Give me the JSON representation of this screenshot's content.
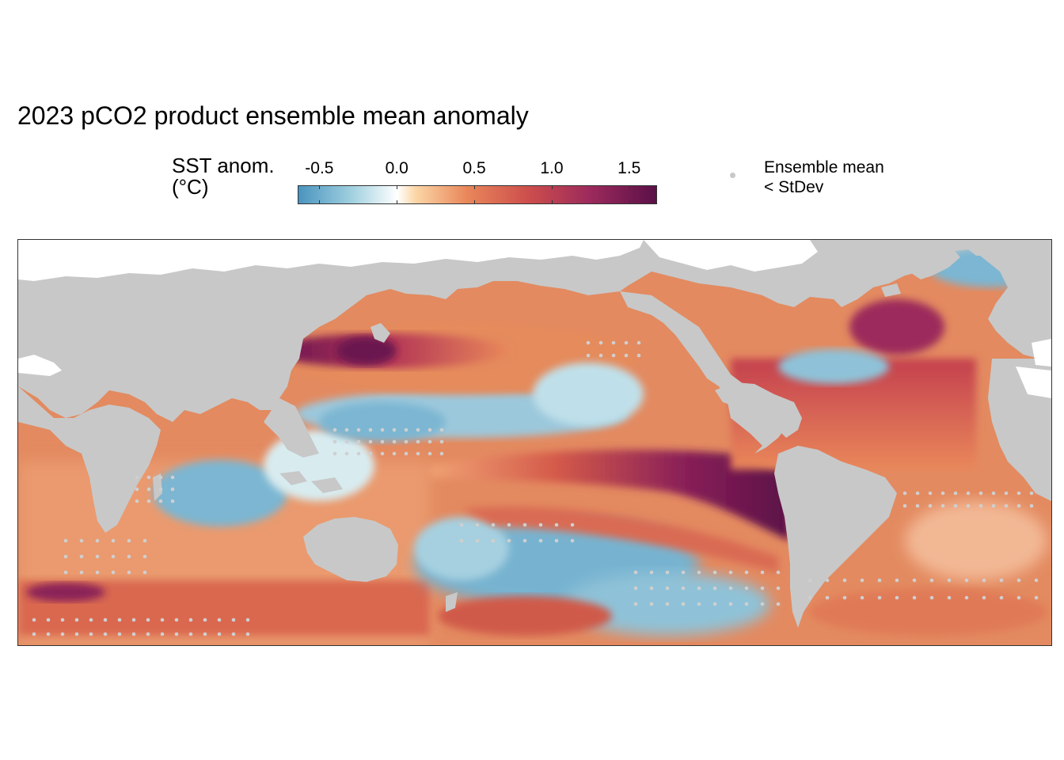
{
  "title": "2023 pCO2 product ensemble mean anomaly",
  "colorbar": {
    "title_line1": "SST anom.",
    "title_line2": "(°C)",
    "ticks": [
      {
        "label": "-0.5",
        "value": -0.5
      },
      {
        "label": "0.0",
        "value": 0.0
      },
      {
        "label": "0.5",
        "value": 0.5
      },
      {
        "label": "1.0",
        "value": 1.0
      },
      {
        "label": "1.5",
        "value": 1.5
      }
    ],
    "range": [
      -0.64,
      1.68
    ],
    "stops": [
      {
        "value": -0.64,
        "color": "#4a94bf"
      },
      {
        "value": -0.3,
        "color": "#9fcfdf"
      },
      {
        "value": 0.0,
        "color": "#ffffff"
      },
      {
        "value": 0.12,
        "color": "#fbd6a6"
      },
      {
        "value": 0.45,
        "color": "#e9875a"
      },
      {
        "value": 0.85,
        "color": "#cd4e4c"
      },
      {
        "value": 1.25,
        "color": "#9c2a5c"
      },
      {
        "value": 1.68,
        "color": "#5a1048"
      }
    ]
  },
  "legend": {
    "line1": "Ensemble mean",
    "line2": "< StDev",
    "dot_color": "#c8c8c8"
  },
  "map": {
    "land_color": "#c8c8c8",
    "projection": "equirectangular",
    "center_longitude": 30
  }
}
